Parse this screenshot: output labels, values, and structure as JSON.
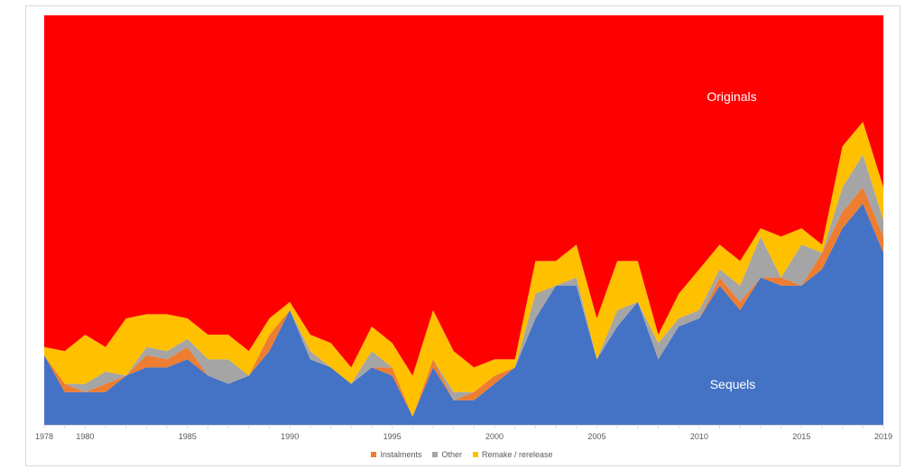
{
  "chart_data": {
    "type": "area",
    "stacking": "100%",
    "x": [
      1978,
      1979,
      1980,
      1981,
      1982,
      1983,
      1984,
      1985,
      1986,
      1987,
      1988,
      1989,
      1990,
      1991,
      1992,
      1993,
      1994,
      1995,
      1996,
      1997,
      1998,
      1999,
      2000,
      2001,
      2002,
      2003,
      2004,
      2005,
      2006,
      2007,
      2008,
      2009,
      2010,
      2011,
      2012,
      2013,
      2014,
      2015,
      2016,
      2017,
      2018,
      2019
    ],
    "x_tick_labels": [
      "1978",
      "1980",
      "1985",
      "1990",
      "1995",
      "2000",
      "2005",
      "2010",
      "2015",
      "2019"
    ],
    "ylim": [
      0,
      100
    ],
    "grid": false,
    "legend_position": "bottom",
    "series": [
      {
        "key": "sequels",
        "color": "#4472c4",
        "values": [
          17,
          8,
          8,
          8,
          12,
          14,
          14,
          16,
          12,
          10,
          12,
          18,
          28,
          16,
          14,
          10,
          14,
          12,
          2,
          14,
          6,
          6,
          10,
          14,
          26,
          34,
          34,
          16,
          24,
          30,
          16,
          24,
          26,
          34,
          28,
          36,
          34,
          34,
          38,
          48,
          54,
          42
        ]
      },
      {
        "key": "instalments",
        "color": "#ed7d31",
        "values": [
          0,
          2,
          0,
          2,
          0,
          3,
          2,
          3,
          0,
          0,
          0,
          4,
          0,
          0,
          0,
          0,
          0,
          2,
          0,
          2,
          0,
          2,
          2,
          0,
          0,
          0,
          0,
          0,
          0,
          0,
          0,
          0,
          0,
          2,
          2,
          0,
          2,
          0,
          4,
          4,
          4,
          4
        ]
      },
      {
        "key": "other",
        "color": "#a5a5a5",
        "values": [
          0,
          0,
          2,
          3,
          0,
          2,
          2,
          2,
          4,
          6,
          0,
          0,
          0,
          2,
          0,
          0,
          4,
          0,
          0,
          0,
          2,
          0,
          0,
          0,
          6,
          0,
          2,
          0,
          4,
          0,
          4,
          2,
          2,
          2,
          4,
          10,
          0,
          10,
          0,
          6,
          8,
          4
        ]
      },
      {
        "key": "remake",
        "color": "#ffc000",
        "values": [
          2,
          8,
          12,
          6,
          14,
          8,
          9,
          5,
          6,
          6,
          6,
          4,
          2,
          4,
          6,
          4,
          6,
          6,
          10,
          12,
          10,
          6,
          4,
          2,
          8,
          6,
          8,
          10,
          12,
          10,
          2,
          6,
          10,
          6,
          6,
          2,
          10,
          4,
          2,
          10,
          8,
          8
        ]
      },
      {
        "key": "originals",
        "color": "#ff0000",
        "values": [
          81,
          82,
          78,
          81,
          74,
          73,
          73,
          74,
          78,
          78,
          82,
          74,
          70,
          78,
          80,
          86,
          76,
          80,
          88,
          72,
          82,
          86,
          84,
          84,
          60,
          60,
          56,
          74,
          60,
          60,
          78,
          68,
          62,
          56,
          60,
          52,
          54,
          52,
          56,
          32,
          26,
          42
        ]
      }
    ],
    "annotations": [
      {
        "text": "Originals",
        "series": "originals"
      },
      {
        "text": "Sequels",
        "series": "sequels"
      }
    ],
    "legend": [
      {
        "label": "Instalments",
        "color": "#ed7d31"
      },
      {
        "label": "Other",
        "color": "#a5a5a5"
      },
      {
        "label": "Remake / rerelease",
        "color": "#ffc000"
      }
    ]
  }
}
